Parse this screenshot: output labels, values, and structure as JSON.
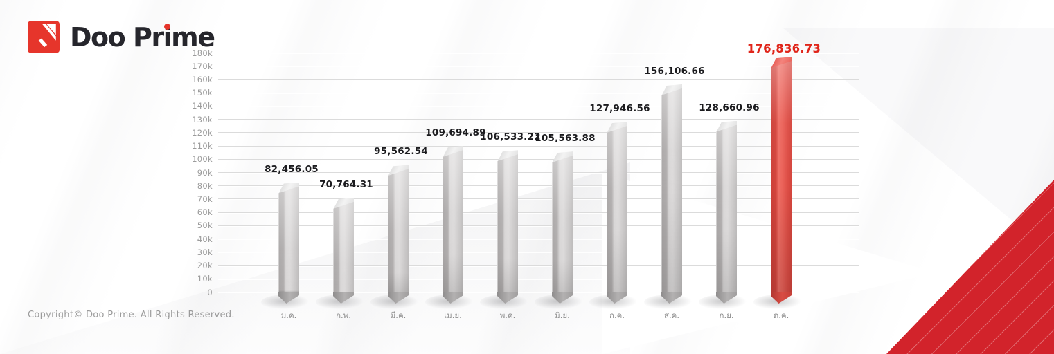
{
  "logo": {
    "full_name": "Doo Prime",
    "name_parts": [
      "Doo Pr",
      "i",
      "me"
    ],
    "mark_color": "#e6352b",
    "text_color": "#26262c"
  },
  "footer": {
    "copyright": "Copyright© Doo Prime. All Rights Reserved."
  },
  "decor": {
    "corner_color": "#d2232b"
  },
  "chart_data": {
    "type": "bar",
    "title": "",
    "xlabel": "",
    "ylabel": "",
    "categories": [
      "ม.ค.",
      "ก.พ.",
      "มี.ค.",
      "เม.ย.",
      "พ.ค.",
      "มิ.ย.",
      "ก.ค.",
      "ส.ค.",
      "ก.ย.",
      "ต.ค."
    ],
    "values": [
      82456.05,
      70764.31,
      95562.54,
      109694.89,
      106533.22,
      105563.88,
      127946.56,
      156106.66,
      128660.96,
      176836.73
    ],
    "value_labels": [
      "82,456.05",
      "70,764.31",
      "95,562.54",
      "109,694.89",
      "106,533.22",
      "105,563.88",
      "127,946.56",
      "156,106.66",
      "128,660.96",
      "176,836.73"
    ],
    "highlight_index": 9,
    "y_ticks": [
      "0",
      "10k",
      "20k",
      "30k",
      "40k",
      "50k",
      "60k",
      "70k",
      "80k",
      "90k",
      "100k",
      "110k",
      "120k",
      "130k",
      "140k",
      "150k",
      "160k",
      "170k",
      "180k"
    ],
    "ylim": [
      0,
      180000
    ],
    "grid": true,
    "legend": "none",
    "colors": {
      "bar": "#c9c7c7",
      "highlight_bar": "#e0463d",
      "value_label": "#1b1b1e",
      "highlight_value_label": "#e0251a",
      "gridline": "#dbdbdb",
      "tick_label": "#9c9c9c"
    }
  }
}
